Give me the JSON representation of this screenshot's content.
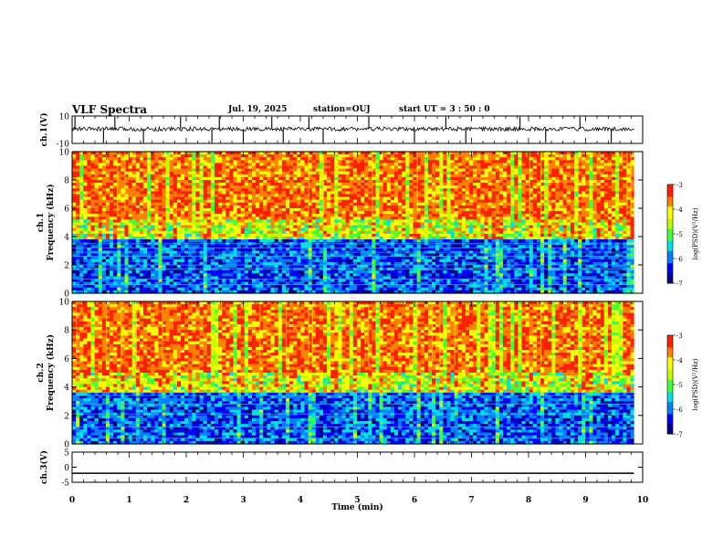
{
  "header": {
    "title": "VLF Spectra",
    "date": "Jul. 19, 2025",
    "station": "station=OUJ",
    "start": "start UT =  3 : 50 : 0"
  },
  "chart_data": [
    {
      "type": "line",
      "name": "ch1-waveform",
      "ylabel": "ch.1(V)",
      "ylim": [
        -10,
        10
      ],
      "yticks": [
        "10",
        "-10"
      ],
      "xlim": [
        0,
        10
      ],
      "baseline": 0.5,
      "spike_times": [
        0.05,
        0.55,
        0.75,
        1.25,
        1.9,
        2.45,
        2.58,
        3.0,
        3.5,
        3.7,
        4.15,
        4.4,
        5.2,
        6.0,
        6.55,
        6.9,
        7.85,
        8.3,
        8.9,
        9.45
      ]
    },
    {
      "type": "heatmap",
      "name": "ch1-spectrogram",
      "ylabel": "ch.1\nFrequency (kHz)",
      "ylim": [
        0,
        10
      ],
      "yticks": [
        "0",
        "2",
        "4",
        "6",
        "8",
        "10"
      ],
      "xlim": [
        0,
        9.85
      ],
      "colorbar": {
        "label": "log(PSD)(V²/Hz)",
        "range": [
          -7,
          -3
        ],
        "ticks": [
          "-3",
          "-4",
          "-5",
          "-6",
          "-7"
        ]
      },
      "band_kHz": [
        0,
        3.8
      ],
      "hum_lines_kHz": [
        0.6,
        1.0,
        1.7,
        2.0,
        2.6,
        2.9,
        3.2,
        3.5
      ]
    },
    {
      "type": "heatmap",
      "name": "ch2-spectrogram",
      "ylabel": "ch.2\nFrequency (kHz)",
      "ylim": [
        0,
        10
      ],
      "yticks": [
        "0",
        "2",
        "4",
        "6",
        "8",
        "10"
      ],
      "xlim": [
        0,
        9.85
      ],
      "colorbar": {
        "label": "log(PSD)(V²/Hz)",
        "range": [
          -7,
          -3
        ],
        "ticks": [
          "-3",
          "-4",
          "-5",
          "-6",
          "-7"
        ]
      },
      "band_kHz": [
        0,
        3.5
      ],
      "hum_lines_kHz": [
        0.4,
        1.2,
        2.1,
        2.8,
        3.4,
        3.6
      ]
    },
    {
      "type": "line",
      "name": "ch3-waveform",
      "ylabel": "ch.3(V)",
      "ylim": [
        -5,
        5
      ],
      "yticks": [
        "5",
        "0",
        "-5"
      ],
      "xlim": [
        0,
        10
      ],
      "series": [
        {
          "x": [
            0,
            9.85
          ],
          "y": [
            -2,
            -2
          ]
        }
      ]
    }
  ],
  "xaxis": {
    "label": "Time (min)",
    "range": [
      0,
      10
    ],
    "ticks": [
      "0",
      "1",
      "2",
      "3",
      "4",
      "5",
      "6",
      "7",
      "8",
      "9",
      "10"
    ]
  },
  "colormap": [
    "#000088",
    "#0000ff",
    "#0080ff",
    "#00e0e0",
    "#40ff40",
    "#c0ff00",
    "#ffff00",
    "#ff8000",
    "#ff2000"
  ]
}
